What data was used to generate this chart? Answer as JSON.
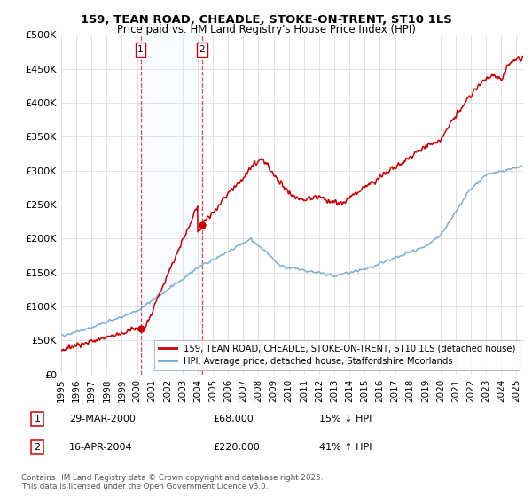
{
  "title_line1": "159, TEAN ROAD, CHEADLE, STOKE-ON-TRENT, ST10 1LS",
  "title_line2": "Price paid vs. HM Land Registry's House Price Index (HPI)",
  "ylabel_ticks": [
    "£0",
    "£50K",
    "£100K",
    "£150K",
    "£200K",
    "£250K",
    "£300K",
    "£350K",
    "£400K",
    "£450K",
    "£500K"
  ],
  "ytick_values": [
    0,
    50000,
    100000,
    150000,
    200000,
    250000,
    300000,
    350000,
    400000,
    450000,
    500000
  ],
  "ylim": [
    0,
    500000
  ],
  "xlim_start": 1995.0,
  "xlim_end": 2025.5,
  "xtick_years": [
    1995,
    1996,
    1997,
    1998,
    1999,
    2000,
    2001,
    2002,
    2003,
    2004,
    2005,
    2006,
    2007,
    2008,
    2009,
    2010,
    2011,
    2012,
    2013,
    2014,
    2015,
    2016,
    2017,
    2018,
    2019,
    2020,
    2021,
    2022,
    2023,
    2024,
    2025
  ],
  "sale1_x": 2000.23,
  "sale1_y": 68000,
  "sale1_label": "1",
  "sale1_date": "29-MAR-2000",
  "sale1_price": "£68,000",
  "sale1_hpi": "15% ↓ HPI",
  "sale2_x": 2004.29,
  "sale2_y": 220000,
  "sale2_label": "2",
  "sale2_date": "16-APR-2004",
  "sale2_price": "£220,000",
  "sale2_hpi": "41% ↑ HPI",
  "line1_color": "#cc0000",
  "line2_color": "#7aadd4",
  "marker_color": "#cc0000",
  "vline_color": "#cc0000",
  "shade_color": "#ddeeff",
  "background_color": "#ffffff",
  "grid_color": "#dddddd",
  "legend1_label": "159, TEAN ROAD, CHEADLE, STOKE-ON-TRENT, ST10 1LS (detached house)",
  "legend2_label": "HPI: Average price, detached house, Staffordshire Moorlands",
  "footer": "Contains HM Land Registry data © Crown copyright and database right 2025.\nThis data is licensed under the Open Government Licence v3.0."
}
